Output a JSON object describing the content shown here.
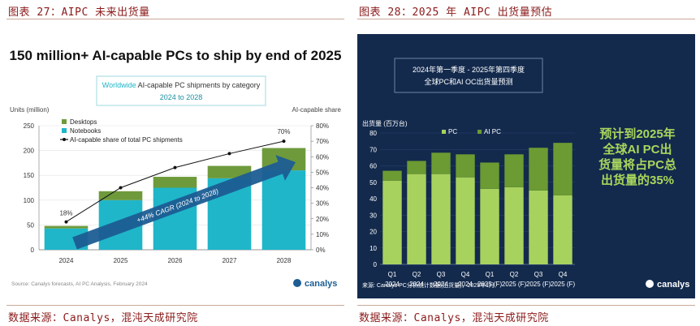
{
  "captions": {
    "left": "图表 27：AIPC 未来出货量",
    "right": "图表 28：2025 年 AIPC 出货量预估"
  },
  "sources": {
    "left": "数据来源：Canalys，混沌天成研究院",
    "right": "数据来源：Canalys，混沌天成研究院"
  },
  "chart_data": [
    {
      "type": "bar",
      "title": "150 million+ AI-capable PCs to ship by end of 2025",
      "subtitle_lead": "Worldwide",
      "subtitle_rest": " AI-capable PC shipments by category",
      "subtitle_range": "2024 to 2028",
      "ylabel": "Units (million)",
      "y2label": "AI-capable share",
      "ylim": [
        0,
        250
      ],
      "y2lim": [
        0,
        80
      ],
      "yticks": [
        0,
        50,
        100,
        150,
        200,
        250
      ],
      "y2ticks": [
        "0%",
        "10%",
        "20%",
        "30%",
        "40%",
        "50%",
        "60%",
        "70%",
        "80%"
      ],
      "categories": [
        "2024",
        "2025",
        "2026",
        "2027",
        "2028"
      ],
      "series": [
        {
          "name": "Notebooks",
          "color": "#1fb6c9",
          "values": [
            43,
            100,
            125,
            144,
            160
          ]
        },
        {
          "name": "Desktops",
          "color": "#6e9a3c",
          "values": [
            5,
            18,
            22,
            25,
            45
          ]
        }
      ],
      "line": {
        "name": "AI-capable share of total PC shipments",
        "values": [
          18,
          40,
          53,
          62,
          70
        ]
      },
      "data_labels": {
        "first": "18%",
        "last": "70%"
      },
      "arrow_label": "+44% CAGR (2024 to 2028)",
      "footnote": "Source: Canalys forecasts, AI PC Analysis, February 2024",
      "brand": "canalys"
    },
    {
      "type": "bar",
      "title_line1": "2024年第一季度 - 2025年第四季度",
      "title_line2": "全球PC和AI OC出货量预测",
      "ylabel": "出货量 (百万台)",
      "ylim": [
        0,
        80
      ],
      "yticks": [
        0,
        10,
        20,
        30,
        40,
        50,
        60,
        70,
        80
      ],
      "categories": [
        [
          "Q1",
          "2024"
        ],
        [
          "Q2",
          "2024"
        ],
        [
          "Q3",
          "2024"
        ],
        [
          "Q4",
          "2024"
        ],
        [
          "Q1",
          "2025 (F)"
        ],
        [
          "Q2",
          "2025 (F)"
        ],
        [
          "Q3",
          "2025 (F)"
        ],
        [
          "Q4",
          "2025 (F)"
        ]
      ],
      "series": [
        {
          "name": "PC",
          "color": "#a8d25e",
          "values": [
            51,
            55,
            55,
            53,
            46,
            47,
            45,
            42
          ]
        },
        {
          "name": "AI PC",
          "color": "#6b9b32",
          "values": [
            6,
            8,
            13,
            14,
            16,
            20,
            26,
            32
          ]
        }
      ],
      "callout": [
        "预计到2025年",
        "全球AI PC出",
        "货量将占PC总",
        "出货量的35%"
      ],
      "footnote": "来源: Canalys PC分析统计数据(出货量)，2025年1月",
      "brand": "canalys"
    }
  ]
}
